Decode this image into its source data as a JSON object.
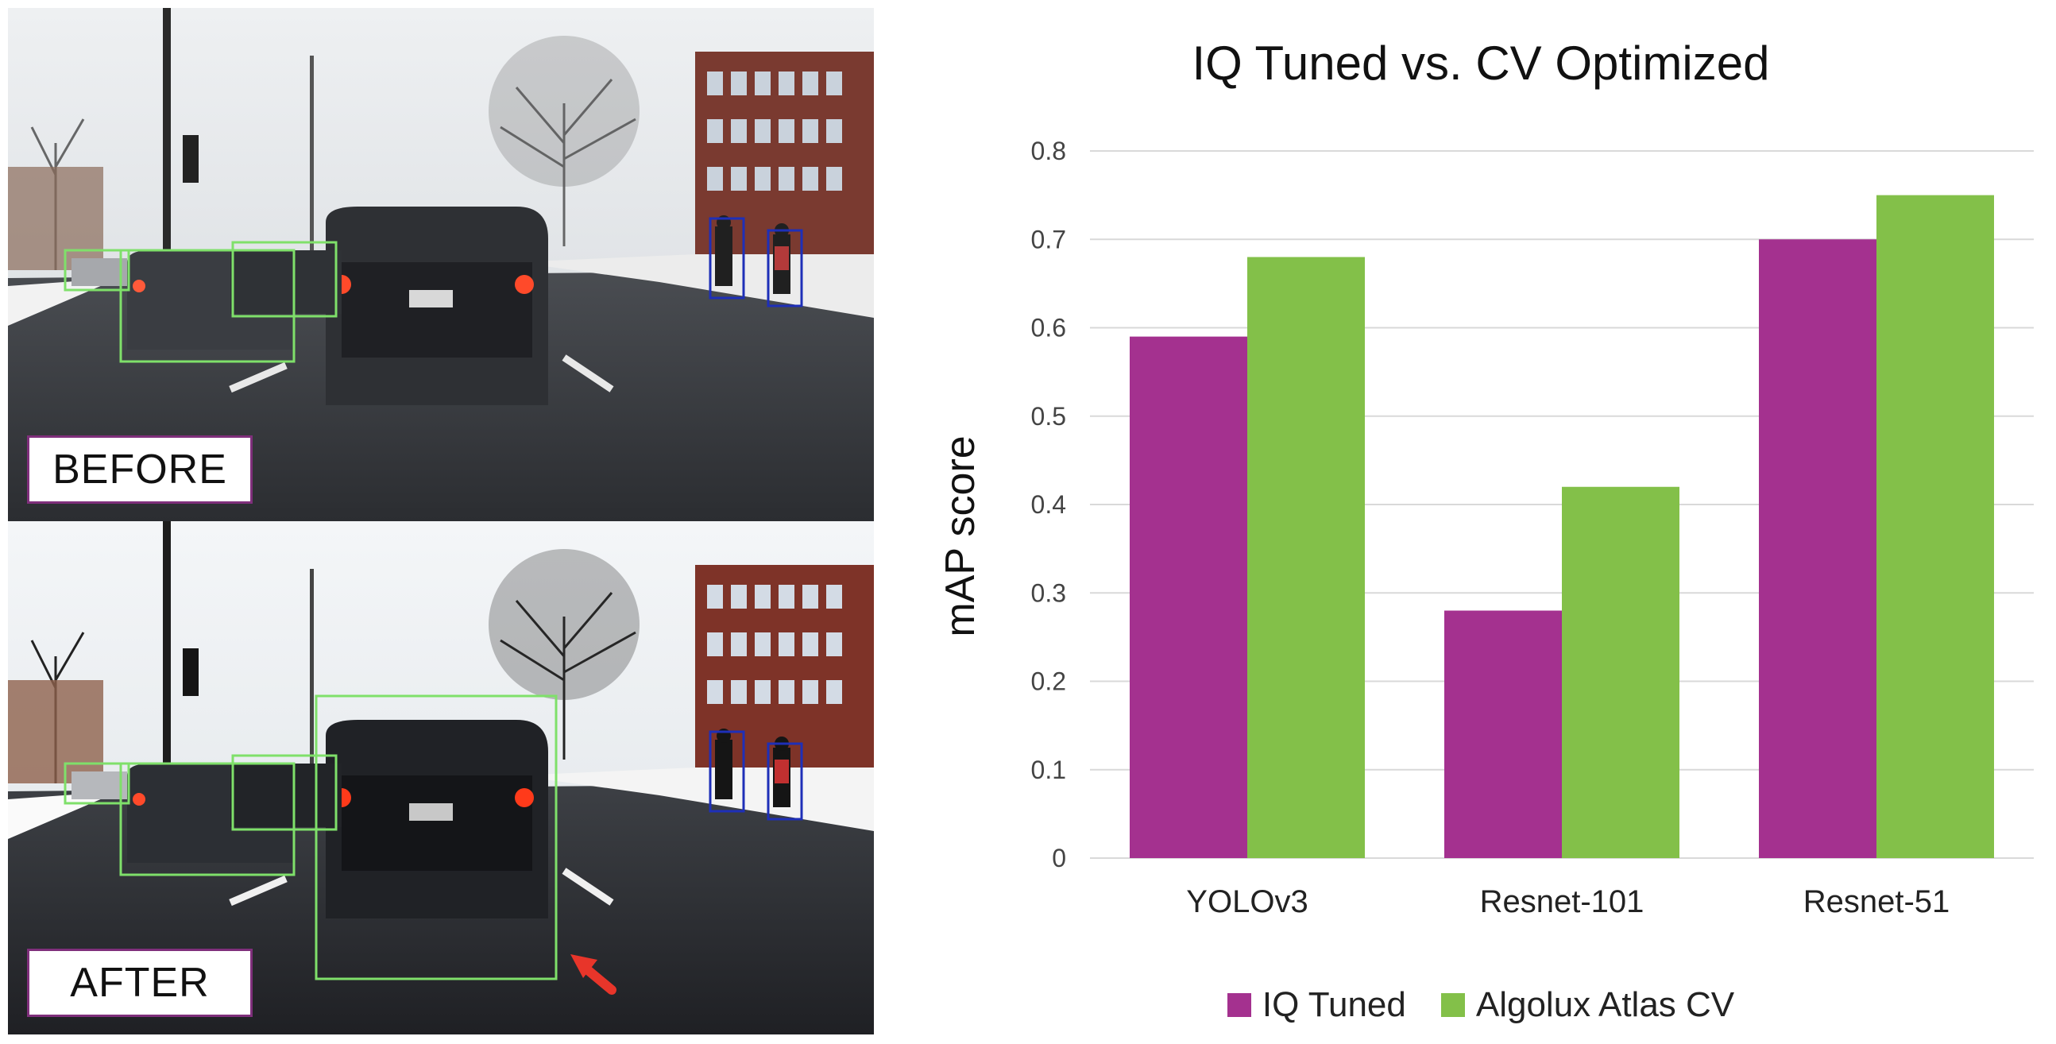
{
  "panels": {
    "before": {
      "label": "BEFORE"
    },
    "after": {
      "label": "AFTER"
    }
  },
  "colors": {
    "series1": "#A4318F",
    "series2": "#83C049",
    "detection_green": "#7FE06A",
    "detection_blue": "#1E2FB8",
    "arrow_red": "#E8352A",
    "label_border": "#7F2F7B",
    "grid": "#D9D9D9",
    "axis_text": "#444444"
  },
  "chart_data": {
    "type": "bar",
    "title": "IQ Tuned vs. CV Optimized",
    "xlabel": "",
    "ylabel": "mAP score",
    "categories": [
      "YOLOv3",
      "Resnet-101",
      "Resnet-51"
    ],
    "series": [
      {
        "name": "IQ Tuned",
        "values": [
          0.59,
          0.28,
          0.7
        ]
      },
      {
        "name": "Algolux Atlas CV",
        "values": [
          0.68,
          0.42,
          0.75
        ]
      }
    ],
    "ylim": [
      0,
      0.8
    ],
    "yticks": [
      "0",
      "0.1",
      "0.2",
      "0.3",
      "0.4",
      "0.5",
      "0.6",
      "0.7",
      "0.8"
    ],
    "grid": true,
    "legend_position": "bottom"
  }
}
